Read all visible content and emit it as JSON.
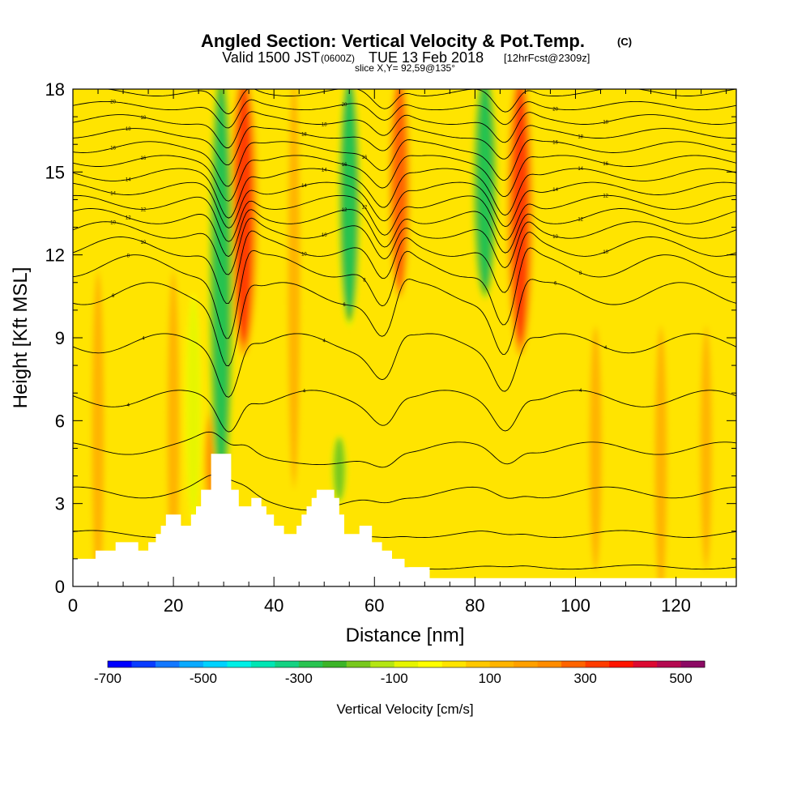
{
  "header": {
    "title": "Angled Section: Vertical Velocity & Pot.Temp.",
    "title_tag": "(C)",
    "valid_prefix": "Valid 1500 JST",
    "valid_utc": "(0600Z)",
    "valid_date": "TUE 13 Feb 2018",
    "forecast": "[12hrFcst@2309z]",
    "slice": "slice X,Y= 92,59@135°"
  },
  "chart_data": {
    "type": "heatmap",
    "title": "Angled Section: Vertical Velocity & Pot.Temp.",
    "xlabel": "Distance [nm]",
    "ylabel": "Height [Kft MSL]",
    "xlim": [
      0,
      132
    ],
    "ylim": [
      0,
      18
    ],
    "x_ticks": [
      0,
      20,
      40,
      60,
      80,
      100,
      120
    ],
    "y_ticks": [
      0,
      3,
      6,
      9,
      12,
      15,
      18
    ],
    "background_color": "#ffe400",
    "upward_bands": [
      {
        "x": 34,
        "ytop": 18,
        "ybot": 9,
        "w": 330
      },
      {
        "x": 65,
        "ytop": 18,
        "ybot": 11,
        "w": 260
      },
      {
        "x": 89,
        "ytop": 18,
        "ybot": 9,
        "w": 310
      },
      {
        "x": 28,
        "ytop": 6,
        "ybot": 3,
        "w": 230
      },
      {
        "x": 5,
        "ytop": 11,
        "ybot": 0,
        "w": 130
      },
      {
        "x": 20,
        "ytop": 11,
        "ybot": 0,
        "w": 130
      },
      {
        "x": 44,
        "ytop": 18,
        "ybot": 4,
        "w": 120
      },
      {
        "x": 104,
        "ytop": 9,
        "ybot": 1,
        "w": 130
      },
      {
        "x": 117,
        "ytop": 9,
        "ybot": 0,
        "w": 130
      },
      {
        "x": 126,
        "ytop": 9,
        "ybot": 1,
        "w": 110
      }
    ],
    "downward_bands": [
      {
        "x": 29.5,
        "ytop": 18,
        "ybot": 3.9,
        "w": -290
      },
      {
        "x": 55,
        "ytop": 18,
        "ybot": 10,
        "w": -280
      },
      {
        "x": 82,
        "ytop": 18,
        "ybot": 11,
        "w": -290
      },
      {
        "x": 53,
        "ytop": 5,
        "ybot": 3.5,
        "w": -180
      },
      {
        "x": 24,
        "ytop": 10,
        "ybot": 3,
        "w": -90
      }
    ],
    "terrain": [
      [
        0,
        1.0
      ],
      [
        4.5,
        1.0
      ],
      [
        4.5,
        1.3
      ],
      [
        8.5,
        1.3
      ],
      [
        8.5,
        1.6
      ],
      [
        13,
        1.6
      ],
      [
        13,
        1.3
      ],
      [
        15,
        1.3
      ],
      [
        15,
        1.6
      ],
      [
        16.5,
        1.6
      ],
      [
        16.5,
        1.9
      ],
      [
        17.5,
        1.9
      ],
      [
        17.5,
        2.2
      ],
      [
        18.5,
        2.2
      ],
      [
        18.5,
        2.6
      ],
      [
        21.5,
        2.6
      ],
      [
        21.5,
        2.2
      ],
      [
        23.5,
        2.2
      ],
      [
        23.5,
        2.6
      ],
      [
        24.5,
        2.6
      ],
      [
        24.5,
        2.9
      ],
      [
        25.5,
        2.9
      ],
      [
        25.5,
        3.5
      ],
      [
        27.5,
        3.5
      ],
      [
        27.5,
        4.8
      ],
      [
        31.5,
        4.8
      ],
      [
        31.5,
        3.5
      ],
      [
        33,
        3.5
      ],
      [
        33,
        2.9
      ],
      [
        35.5,
        2.9
      ],
      [
        35.5,
        3.2
      ],
      [
        37.5,
        3.2
      ],
      [
        37.5,
        2.9
      ],
      [
        38.5,
        2.9
      ],
      [
        38.5,
        2.6
      ],
      [
        40,
        2.6
      ],
      [
        40,
        2.2
      ],
      [
        42,
        2.2
      ],
      [
        42,
        1.9
      ],
      [
        44.5,
        1.9
      ],
      [
        44.5,
        2.2
      ],
      [
        45.5,
        2.2
      ],
      [
        45.5,
        2.6
      ],
      [
        46.5,
        2.6
      ],
      [
        46.5,
        2.9
      ],
      [
        47.5,
        2.9
      ],
      [
        47.5,
        3.2
      ],
      [
        48.5,
        3.2
      ],
      [
        48.5,
        3.5
      ],
      [
        52,
        3.5
      ],
      [
        52,
        3.2
      ],
      [
        53,
        3.2
      ],
      [
        53,
        2.6
      ],
      [
        54,
        2.6
      ],
      [
        54,
        1.9
      ],
      [
        57,
        1.9
      ],
      [
        57,
        2.2
      ],
      [
        59.5,
        2.2
      ],
      [
        59.5,
        1.6
      ],
      [
        61.5,
        1.6
      ],
      [
        61.5,
        1.3
      ],
      [
        63.5,
        1.3
      ],
      [
        63.5,
        1.0
      ],
      [
        66,
        1.0
      ],
      [
        66,
        0.7
      ],
      [
        71,
        0.7
      ],
      [
        71,
        0.3
      ],
      [
        132,
        0.3
      ]
    ],
    "contour_levels": [
      {
        "base": 0.7,
        "amp": 0.3,
        "label": ""
      },
      {
        "base": 1.9,
        "amp": 0.5,
        "label": ""
      },
      {
        "base": 3.4,
        "amp": 0.8,
        "label": ""
      },
      {
        "base": 5.0,
        "amp": 0.9,
        "label": ""
      },
      {
        "base": 6.8,
        "amp": 1.2,
        "label": "4"
      },
      {
        "base": 8.8,
        "amp": 1.4,
        "label": "4"
      },
      {
        "base": 10.6,
        "amp": 1.6,
        "label": "6"
      },
      {
        "base": 11.6,
        "amp": 1.6,
        "label": "8"
      },
      {
        "base": 12.3,
        "amp": 1.4,
        "label": "10"
      },
      {
        "base": 12.9,
        "amp": 1.2,
        "label": "10"
      },
      {
        "base": 13.4,
        "amp": 1.1,
        "label": "12"
      },
      {
        "base": 13.9,
        "amp": 1.0,
        "label": "12"
      },
      {
        "base": 14.4,
        "amp": 0.9,
        "label": "14"
      },
      {
        "base": 14.9,
        "amp": 0.9,
        "label": "14"
      },
      {
        "base": 15.4,
        "amp": 0.8,
        "label": "16"
      },
      {
        "base": 15.9,
        "amp": 0.8,
        "label": "16"
      },
      {
        "base": 16.4,
        "amp": 0.7,
        "label": "18"
      },
      {
        "base": 16.9,
        "amp": 0.7,
        "label": "18"
      },
      {
        "base": 17.4,
        "amp": 0.6,
        "label": "20"
      },
      {
        "base": 17.9,
        "amp": 0.6,
        "label": ""
      }
    ]
  },
  "colorbar": {
    "label": "Vertical Velocity [cm/s]",
    "min": -700,
    "max": 550,
    "step": 50,
    "tick_values": [
      -700,
      -500,
      -300,
      -100,
      100,
      300,
      500
    ],
    "tick_labels": [
      "-700",
      "-500",
      "-300",
      "-100",
      "100",
      "300",
      "500"
    ],
    "colors": [
      "#0000ff",
      "#0a3cff",
      "#1478ff",
      "#0aaaff",
      "#00d2ff",
      "#00f0e6",
      "#00e6b4",
      "#14d282",
      "#28c350",
      "#3cb428",
      "#78c81e",
      "#b4e614",
      "#e6f500",
      "#ffff00",
      "#ffe400",
      "#ffc800",
      "#ffb400",
      "#ffa000",
      "#ff8c00",
      "#ff6400",
      "#ff3c00",
      "#ff1400",
      "#dc0a32",
      "#b40a50",
      "#8c0a64",
      "#5a0a82"
    ]
  }
}
